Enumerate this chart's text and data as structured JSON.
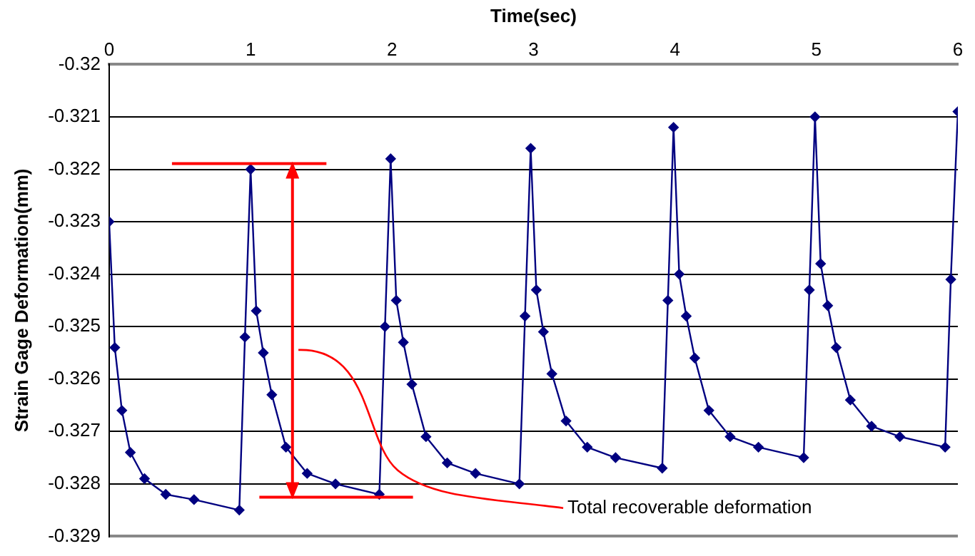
{
  "chart_data": {
    "type": "line",
    "xlabel": "Time(sec)",
    "ylabel": "Strain Gage Deformation(mm)",
    "x": [
      0,
      0.04,
      0.09,
      0.15,
      0.25,
      0.4,
      0.6,
      0.92,
      0.96,
      1.0,
      1.04,
      1.09,
      1.15,
      1.25,
      1.4,
      1.6,
      1.91,
      1.95,
      1.99,
      2.03,
      2.08,
      2.14,
      2.24,
      2.39,
      2.59,
      2.9,
      2.94,
      2.98,
      3.02,
      3.07,
      3.13,
      3.23,
      3.38,
      3.58,
      3.91,
      3.95,
      3.99,
      4.03,
      4.08,
      4.14,
      4.24,
      4.39,
      4.59,
      4.91,
      4.95,
      4.99,
      5.03,
      5.08,
      5.14,
      5.24,
      5.39,
      5.59,
      5.91,
      5.95,
      6.0
    ],
    "series": [
      {
        "color": "#000080",
        "values": [
          -0.323,
          -0.3254,
          -0.3266,
          -0.3274,
          -0.3279,
          -0.3282,
          -0.3283,
          -0.3285,
          -0.3252,
          -0.322,
          -0.3247,
          -0.3255,
          -0.3263,
          -0.3273,
          -0.3278,
          -0.328,
          -0.3282,
          -0.325,
          -0.3218,
          -0.3245,
          -0.3253,
          -0.3261,
          -0.3271,
          -0.3276,
          -0.3278,
          -0.328,
          -0.3248,
          -0.3216,
          -0.3243,
          -0.3251,
          -0.3259,
          -0.3268,
          -0.3273,
          -0.3275,
          -0.3277,
          -0.3245,
          -0.3212,
          -0.324,
          -0.3248,
          -0.3256,
          -0.3266,
          -0.3271,
          -0.3273,
          -0.3275,
          -0.3243,
          -0.321,
          -0.3238,
          -0.3246,
          -0.3254,
          -0.3264,
          -0.3269,
          -0.3271,
          -0.3273,
          -0.3241,
          -0.3209
        ]
      }
    ],
    "xlim": [
      0,
      6
    ],
    "xticks": [
      0,
      1,
      2,
      3,
      4,
      5,
      6
    ],
    "ylim": [
      -0.329,
      -0.32
    ],
    "yticks": [
      -0.329,
      -0.328,
      -0.327,
      -0.326,
      -0.325,
      -0.324,
      -0.323,
      -0.322,
      -0.321,
      -0.32
    ],
    "grid": "y",
    "legend": false,
    "marker": "diamond",
    "line_style": "solid",
    "annotations": [
      "Total recoverable deformation"
    ]
  }
}
